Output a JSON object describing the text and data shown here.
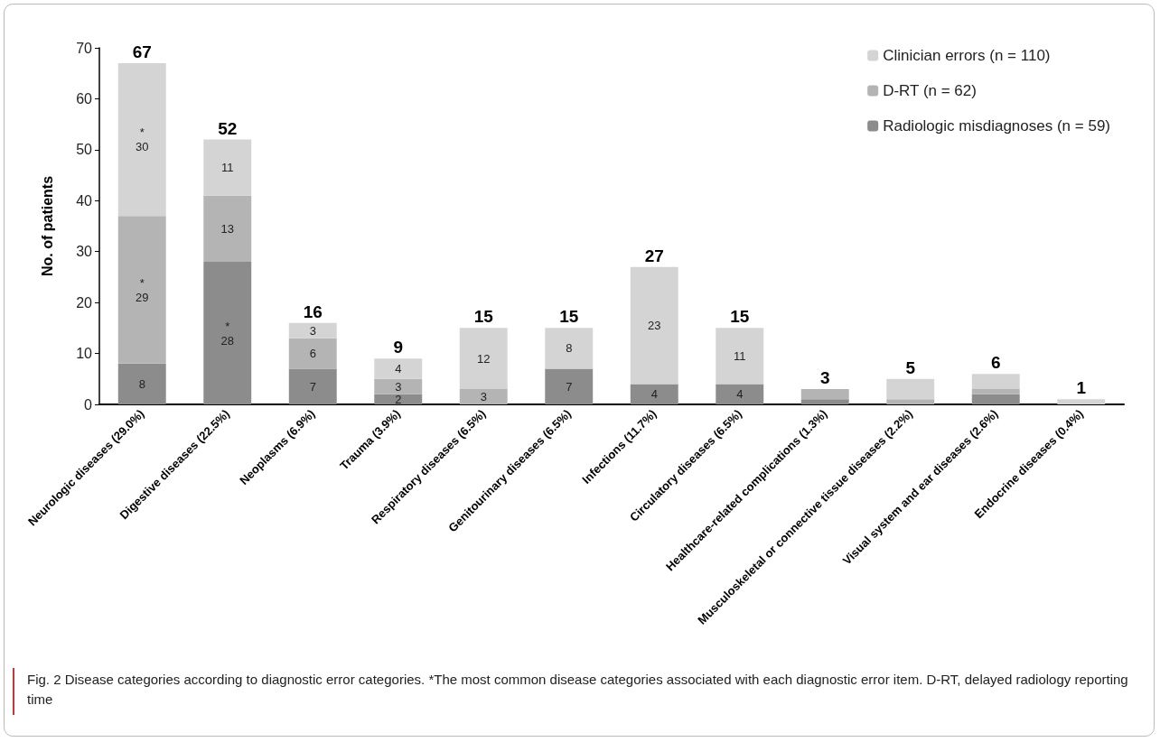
{
  "chart_data": {
    "type": "bar",
    "stacked": true,
    "ylabel": "No. of patients",
    "categories": [
      "Neurologic diseases (29.0%)",
      "Digestive diseases (22.5%)",
      "Neoplasms (6.9%)",
      "Trauma (3.9%)",
      "Respiratory diseases (6.5%)",
      "Genitourinary diseases (6.5%)",
      "Infections (11.7%)",
      "Circulatory diseases (6.5%)",
      "Healthcare-related complications (1.3%)",
      "Musculoskeletal or connective tissue diseases (2.2%)",
      "Visual system and ear diseases (2.6%)",
      "Endocrine diseases (0.4%)"
    ],
    "series": [
      {
        "name": "Radiologic misdiagnoses (n = 59)",
        "color": "#8c8c8c",
        "values": [
          8,
          28,
          7,
          2,
          null,
          7,
          4,
          4,
          1,
          null,
          2,
          null
        ],
        "value_labels": [
          "8",
          "*\n28",
          "7",
          "2",
          null,
          "7",
          "4",
          "4",
          null,
          null,
          null,
          null
        ]
      },
      {
        "name": "D-RT (n = 62)",
        "color": "#b4b4b4",
        "values": [
          29,
          13,
          6,
          3,
          3,
          null,
          null,
          null,
          2,
          1,
          1,
          null
        ],
        "value_labels": [
          "*\n29",
          "13",
          "6",
          "3",
          "3",
          null,
          null,
          null,
          null,
          null,
          null,
          null
        ]
      },
      {
        "name": "Clinician errors (n = 110)",
        "color": "#d4d4d4",
        "values": [
          30,
          11,
          3,
          4,
          12,
          8,
          23,
          11,
          null,
          4,
          3,
          1
        ],
        "value_labels": [
          "*\n30",
          "11",
          "3",
          "4",
          "12",
          "8",
          "23",
          "11",
          null,
          null,
          null,
          null
        ]
      }
    ],
    "totals": [
      "67",
      "52",
      "16",
      "9",
      "15",
      "15",
      "27",
      "15",
      "3",
      "5",
      "6",
      "1"
    ],
    "ylim": [
      0,
      70
    ],
    "yticks": [
      0,
      10,
      20,
      30,
      40,
      50,
      60,
      70
    ],
    "grid": false,
    "legend": "top right",
    "annotations": [
      "Fig. 2  Disease categories according to diagnostic error categories. *The most common disease categories associated with each diagnostic error item. D-RT, delayed radiology reporting time"
    ]
  }
}
